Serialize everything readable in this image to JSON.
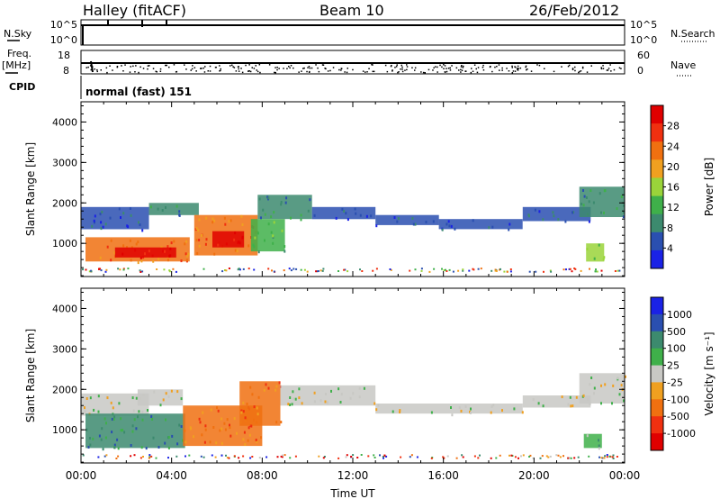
{
  "header": {
    "station": "Halley (fitACF)",
    "beam": "Beam 10",
    "date": "26/Feb/2012"
  },
  "status_panels": {
    "nsky_label": "N.Sky",
    "nsearch_label": "N.Search",
    "noise_ticks": [
      "10^5",
      "10^0"
    ],
    "freq_label": "Freq.",
    "freq_unit": "[MHz]",
    "freq_ticks": [
      "18",
      "8"
    ],
    "nave_label": "Nave",
    "nave_ticks": [
      "60",
      "0"
    ],
    "cpid_label": "CPID",
    "cpid_value": "normal (fast) 151"
  },
  "colors": {
    "power_scale": [
      "#1a22e6",
      "#2a4fb0",
      "#3c8a6e",
      "#3fb04a",
      "#9ad43a",
      "#f0a020",
      "#f07010",
      "#f03010",
      "#e00000"
    ],
    "velocity_scale": [
      "#1a22e6",
      "#2a4fb0",
      "#3c8a6e",
      "#3fb04a",
      "#c8c8c4",
      "#f0a020",
      "#f07010",
      "#f03010",
      "#e00000"
    ]
  },
  "chart_data": [
    {
      "type": "heatmap",
      "name": "power",
      "xlabel": "Time UT",
      "ylabel": "Slant Range [km]",
      "x_ticks": [
        "00:00",
        "04:00",
        "08:00",
        "12:00",
        "16:00",
        "20:00",
        "00:00"
      ],
      "xlim": [
        0,
        24
      ],
      "ylim": [
        180,
        4500
      ],
      "y_ticks": [
        1000,
        2000,
        3000,
        4000
      ],
      "colorbar_label": "Power [dB]",
      "colorbar_ticks": [
        4,
        8,
        12,
        16,
        20,
        24,
        28
      ],
      "regions": [
        {
          "t0": 0.0,
          "t1": 3.0,
          "r0": 1350,
          "r1": 1900,
          "level": 1
        },
        {
          "t0": 0.2,
          "t1": 4.8,
          "r0": 550,
          "r1": 1150,
          "level": 6
        },
        {
          "t0": 1.5,
          "t1": 4.2,
          "r0": 650,
          "r1": 900,
          "level": 8
        },
        {
          "t0": 3.0,
          "t1": 5.2,
          "r0": 1700,
          "r1": 2000,
          "level": 2
        },
        {
          "t0": 5.0,
          "t1": 7.8,
          "r0": 700,
          "r1": 1700,
          "level": 6
        },
        {
          "t0": 5.8,
          "t1": 7.2,
          "r0": 900,
          "r1": 1300,
          "level": 8
        },
        {
          "t0": 7.8,
          "t1": 10.2,
          "r0": 1600,
          "r1": 2200,
          "level": 2
        },
        {
          "t0": 7.5,
          "t1": 9.0,
          "r0": 800,
          "r1": 1600,
          "level": 3
        },
        {
          "t0": 10.2,
          "t1": 13.0,
          "r0": 1600,
          "r1": 1900,
          "level": 1
        },
        {
          "t0": 13.0,
          "t1": 15.8,
          "r0": 1450,
          "r1": 1700,
          "level": 1
        },
        {
          "t0": 15.8,
          "t1": 19.5,
          "r0": 1350,
          "r1": 1600,
          "level": 1
        },
        {
          "t0": 19.5,
          "t1": 22.5,
          "r0": 1550,
          "r1": 1900,
          "level": 1
        },
        {
          "t0": 22.0,
          "t1": 24.0,
          "r0": 1650,
          "r1": 2400,
          "level": 2
        },
        {
          "t0": 22.3,
          "t1": 23.1,
          "r0": 550,
          "r1": 1000,
          "level": 4
        }
      ]
    },
    {
      "type": "heatmap",
      "name": "velocity",
      "xlabel": "Time UT",
      "ylabel": "Slant Range [km]",
      "x_ticks": [
        "00:00",
        "04:00",
        "08:00",
        "12:00",
        "16:00",
        "20:00",
        "00:00"
      ],
      "xlim": [
        0,
        24
      ],
      "ylim": [
        180,
        4500
      ],
      "y_ticks": [
        1000,
        2000,
        3000,
        4000
      ],
      "colorbar_label": "Velocity [m s⁻¹]",
      "colorbar_ticks": [
        "1000",
        "500",
        "100",
        "25",
        "-25",
        "-100",
        "-500",
        "-1000"
      ],
      "regions": [
        {
          "t0": 0.0,
          "t1": 3.0,
          "r0": 1350,
          "r1": 1900,
          "level": 4
        },
        {
          "t0": 0.2,
          "t1": 4.6,
          "r0": 550,
          "r1": 1400,
          "level": 2
        },
        {
          "t0": 2.5,
          "t1": 4.5,
          "r0": 1600,
          "r1": 2000,
          "level": 4
        },
        {
          "t0": 4.5,
          "t1": 8.0,
          "r0": 600,
          "r1": 1600,
          "level": 6
        },
        {
          "t0": 7.0,
          "t1": 8.8,
          "r0": 1100,
          "r1": 2200,
          "level": 6
        },
        {
          "t0": 8.8,
          "t1": 13.0,
          "r0": 1600,
          "r1": 2100,
          "level": 4
        },
        {
          "t0": 13.0,
          "t1": 19.5,
          "r0": 1400,
          "r1": 1650,
          "level": 4
        },
        {
          "t0": 19.5,
          "t1": 22.5,
          "r0": 1550,
          "r1": 1850,
          "level": 4
        },
        {
          "t0": 22.0,
          "t1": 24.0,
          "r0": 1650,
          "r1": 2400,
          "level": 4
        },
        {
          "t0": 22.2,
          "t1": 23.0,
          "r0": 550,
          "r1": 900,
          "level": 3
        }
      ]
    }
  ]
}
